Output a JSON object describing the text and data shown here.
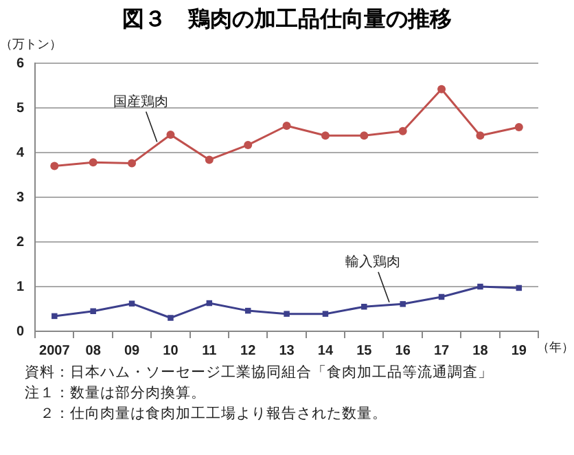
{
  "chart_data": {
    "type": "line",
    "title": "図３　鶏肉の加工品仕向量の推移",
    "ylabel": "（万トン）",
    "xlabel": "（年）",
    "categories": [
      "2007",
      "08",
      "09",
      "10",
      "11",
      "12",
      "13",
      "14",
      "15",
      "16",
      "17",
      "18",
      "19"
    ],
    "series": [
      {
        "name": "国産鶏肉",
        "color": "#c0504d",
        "marker": "circle",
        "values": [
          3.7,
          3.78,
          3.76,
          4.4,
          3.84,
          4.17,
          4.6,
          4.38,
          4.38,
          4.48,
          5.42,
          4.38,
          4.57
        ]
      },
      {
        "name": "輸入鶏肉",
        "color": "#3c3f8c",
        "marker": "square",
        "values": [
          0.34,
          0.45,
          0.62,
          0.3,
          0.63,
          0.46,
          0.39,
          0.39,
          0.55,
          0.61,
          0.77,
          1.0,
          0.97
        ]
      }
    ],
    "ylim": [
      0,
      6
    ],
    "yticks": [
      0,
      1,
      2,
      3,
      4,
      5,
      6
    ],
    "grid": "y",
    "legend": false,
    "line_style": "solid",
    "annotations": [
      "資料：日本ハム・ソーセージ工業協同組合「食肉加工品等流通調査」",
      "注１：数量は部分肉換算。",
      "　２：仕向肉量は食肉加工工場より報告された数量。"
    ]
  }
}
